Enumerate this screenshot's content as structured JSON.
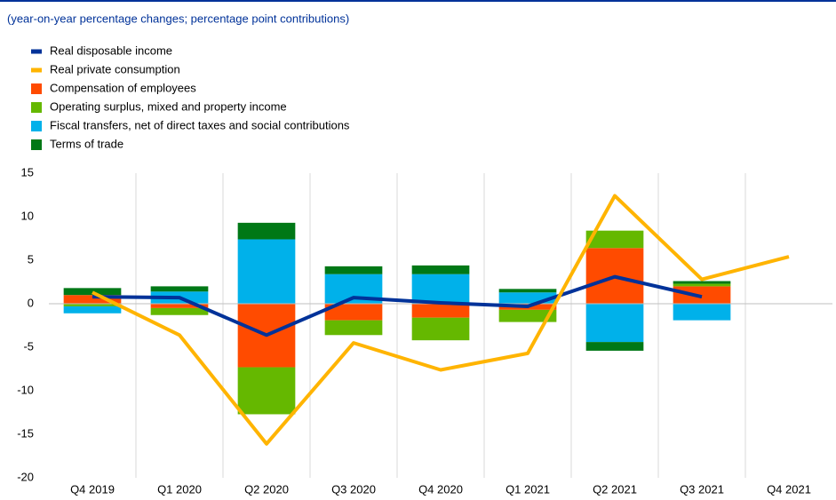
{
  "chart_data": {
    "type": "stacked_bar_line",
    "subtitle": "(year-on-year percentage changes; percentage point contributions)",
    "categories": [
      "Q4 2019",
      "Q1 2020",
      "Q2 2020",
      "Q3 2020",
      "Q4 2020",
      "Q1 2021",
      "Q2 2021",
      "Q3 2021",
      "Q4 2021"
    ],
    "series": [
      {
        "name": "Real disposable income",
        "color": "#003299",
        "kind": "line",
        "values": [
          0.8,
          0.7,
          -3.6,
          0.7,
          0.1,
          -0.3,
          3.1,
          0.8,
          null
        ]
      },
      {
        "name": "Real private consumption",
        "color": "#ffb400",
        "kind": "line",
        "values": [
          1.3,
          -3.6,
          -16.1,
          -4.5,
          -7.6,
          -5.7,
          12.4,
          2.8,
          5.4
        ]
      },
      {
        "name": "Compensation of employees",
        "color": "#ff4b00",
        "kind": "bar",
        "values": [
          1.0,
          -0.5,
          -7.3,
          -1.9,
          -1.6,
          -0.7,
          6.4,
          2.0,
          null
        ]
      },
      {
        "name": "Operating surplus, mixed and property income",
        "color": "#65b800",
        "kind": "bar",
        "values": [
          -0.3,
          -0.8,
          -5.4,
          -1.7,
          -2.6,
          -1.4,
          2.0,
          0.3,
          null
        ]
      },
      {
        "name": "Fiscal transfers, net of direct taxes and social contributions",
        "color": "#00b1ea",
        "kind": "bar",
        "values": [
          -0.8,
          1.4,
          7.4,
          3.4,
          3.4,
          1.3,
          -4.4,
          -1.9,
          null
        ]
      },
      {
        "name": "Terms of trade",
        "color": "#007816",
        "kind": "bar",
        "values": [
          0.8,
          0.6,
          1.9,
          0.9,
          1.0,
          0.4,
          -1.0,
          0.3,
          null
        ]
      }
    ],
    "ylim": [
      -20,
      15
    ],
    "yticks": [
      -20,
      -15,
      -10,
      -5,
      0,
      5,
      10,
      15
    ]
  }
}
